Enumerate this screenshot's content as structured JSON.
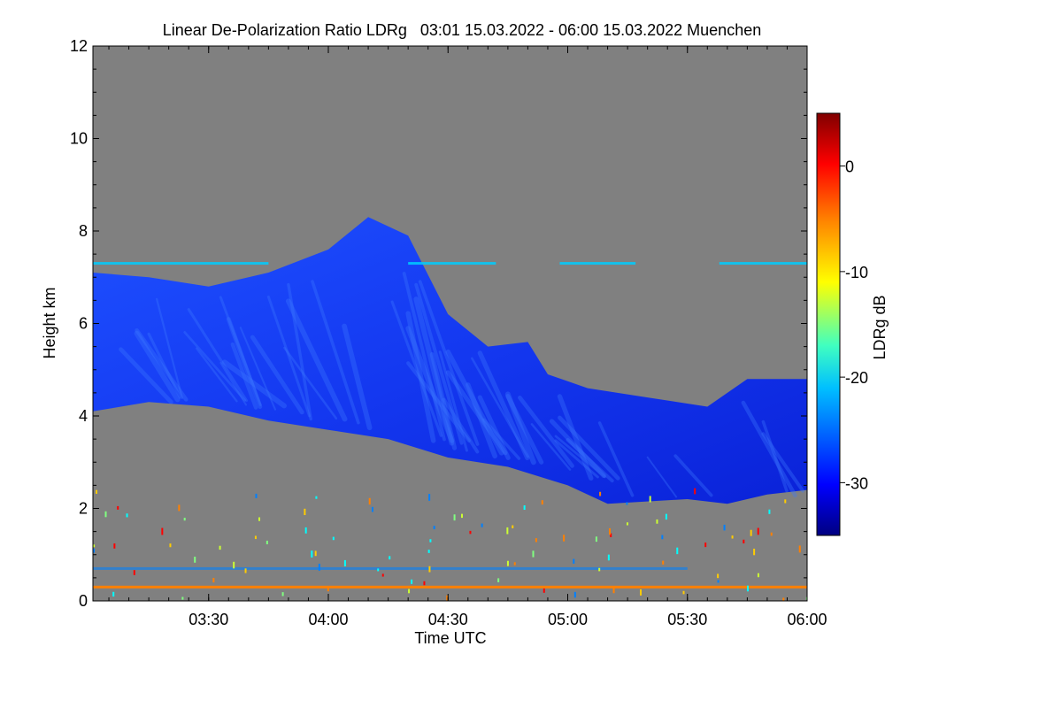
{
  "chart_data": {
    "type": "heatmap",
    "title": "Linear De-Polarization Ratio LDRg   03:01 15.03.2022 - 06:00 15.03.2022 Muenchen",
    "xlabel": "Time UTC",
    "ylabel": "Height km",
    "xlim": [
      "03:01",
      "06:00"
    ],
    "x_ticks": [
      "03:30",
      "04:00",
      "04:30",
      "05:00",
      "05:30",
      "06:00"
    ],
    "ylim": [
      0,
      12
    ],
    "y_ticks": [
      "0",
      "2",
      "4",
      "6",
      "8",
      "10",
      "12"
    ],
    "colorbar": {
      "label": "LDRg dB",
      "range": [
        -35,
        5
      ],
      "ticks": [
        "0",
        "-10",
        "-20",
        "-30"
      ],
      "colormap": "jet"
    },
    "background_color": "#808080",
    "dominant_value_db": -30,
    "features": {
      "main_cloud_layer": {
        "value_db": -30,
        "top_km": [
          [
            "03:01",
            7.1
          ],
          [
            "03:15",
            7.0
          ],
          [
            "03:30",
            6.8
          ],
          [
            "03:45",
            7.1
          ],
          [
            "04:00",
            7.6
          ],
          [
            "04:10",
            8.3
          ],
          [
            "04:20",
            7.9
          ],
          [
            "04:30",
            6.2
          ],
          [
            "04:40",
            5.5
          ],
          [
            "04:50",
            5.6
          ],
          [
            "04:55",
            4.9
          ],
          [
            "05:05",
            4.6
          ],
          [
            "05:20",
            4.4
          ],
          [
            "05:35",
            4.2
          ],
          [
            "05:45",
            4.8
          ],
          [
            "06:00",
            4.8
          ]
        ],
        "base_km": [
          [
            "03:01",
            4.1
          ],
          [
            "03:15",
            4.3
          ],
          [
            "03:30",
            4.2
          ],
          [
            "03:45",
            3.9
          ],
          [
            "04:00",
            3.7
          ],
          [
            "04:15",
            3.5
          ],
          [
            "04:30",
            3.1
          ],
          [
            "04:45",
            2.9
          ],
          [
            "05:00",
            2.5
          ],
          [
            "05:10",
            2.1
          ],
          [
            "05:30",
            2.2
          ],
          [
            "05:40",
            2.1
          ],
          [
            "05:50",
            2.3
          ],
          [
            "06:00",
            2.4
          ]
        ]
      },
      "high_thin_layer": {
        "height_km": 7.3,
        "value_db": -22
      },
      "near_surface_layer": {
        "height_km": 0.3,
        "value_db": -5
      },
      "low_layer": {
        "height_km": 0.7,
        "value_db": -25
      }
    }
  }
}
